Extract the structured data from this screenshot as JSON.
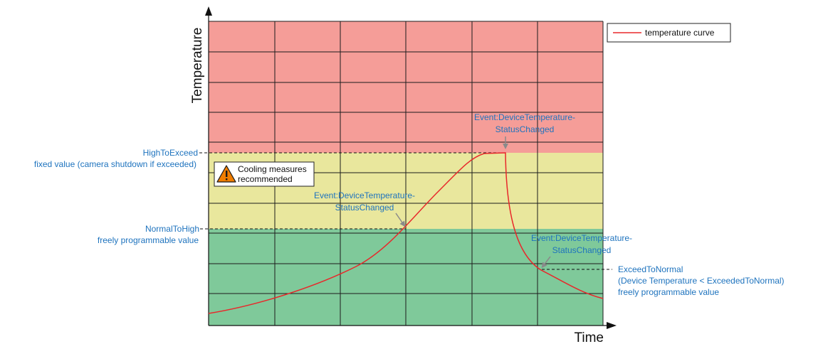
{
  "axes": {
    "y_label": "Temperature",
    "x_label": "Time"
  },
  "legend": {
    "label": "temperature curve",
    "color": "#e8282b"
  },
  "zones": {
    "high": "#f59d98",
    "warning": "#e9e79d",
    "normal": "#7fc99a",
    "grid": "#1c1c1c"
  },
  "thresholds": {
    "high_name": "HighToExceed",
    "high_desc": "fixed value (camera shutdown if exceeded)",
    "normal_name": "NormalToHigh",
    "normal_desc": "freely programmable value",
    "exceed_name": "ExceedToNormal",
    "exceed_line2": "(Device Temperature < ExceededToNormal)",
    "exceed_line3": "freely programmable value"
  },
  "warning": {
    "icon": "warning-triangle-icon",
    "line1": "Cooling measures",
    "line2": "recommended"
  },
  "events": {
    "peak": {
      "line1": "Event:DeviceTemperature-",
      "line2": "StatusChanged"
    },
    "rise": {
      "line1": "Event:DeviceTemperature-",
      "line2": "StatusChanged"
    },
    "fall": {
      "line1": "Event:DeviceTemperature-",
      "line2": "StatusChanged"
    }
  },
  "label_color": "#1e73be"
}
